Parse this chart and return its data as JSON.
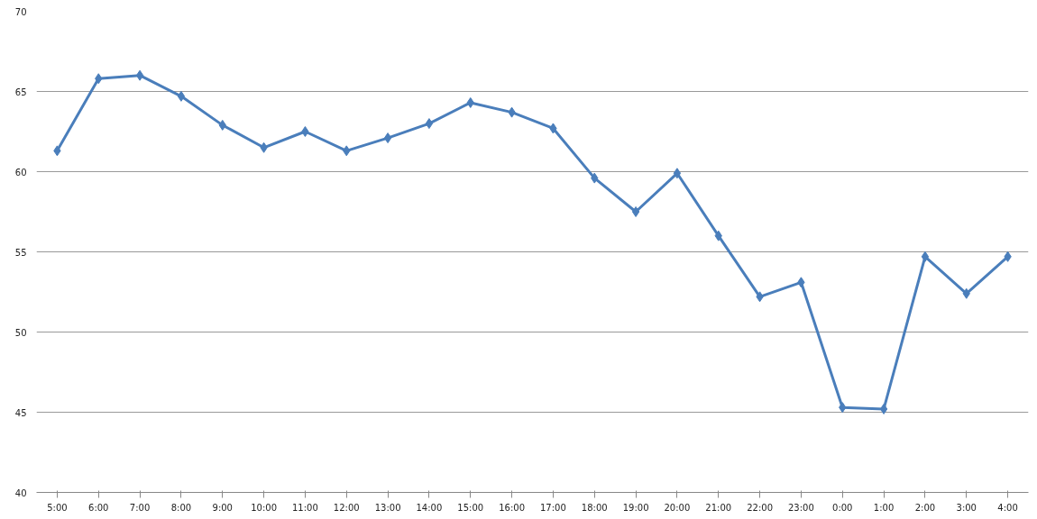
{
  "chart_data": {
    "type": "line",
    "categories": [
      "5:00",
      "6:00",
      "7:00",
      "8:00",
      "9:00",
      "10:00",
      "11:00",
      "12:00",
      "13:00",
      "14:00",
      "15:00",
      "16:00",
      "17:00",
      "18:00",
      "19:00",
      "20:00",
      "21:00",
      "22:00",
      "23:00",
      "0:00",
      "1:00",
      "2:00",
      "3:00",
      "4:00"
    ],
    "series": [
      {
        "color": "#4a7ebb",
        "values": [
          61.3,
          65.8,
          66.0,
          64.7,
          62.9,
          61.5,
          62.5,
          61.3,
          62.1,
          63.0,
          64.3,
          63.7,
          62.7,
          59.6,
          57.5,
          59.9,
          56.0,
          52.2,
          53.1,
          45.3,
          45.2,
          54.7,
          52.4,
          54.7
        ]
      }
    ],
    "ylim": [
      40,
      70
    ],
    "yticks": [
      40,
      45,
      50,
      55,
      60,
      65,
      70
    ],
    "grid": "y",
    "marker": "diamond",
    "line_style": "solid"
  }
}
